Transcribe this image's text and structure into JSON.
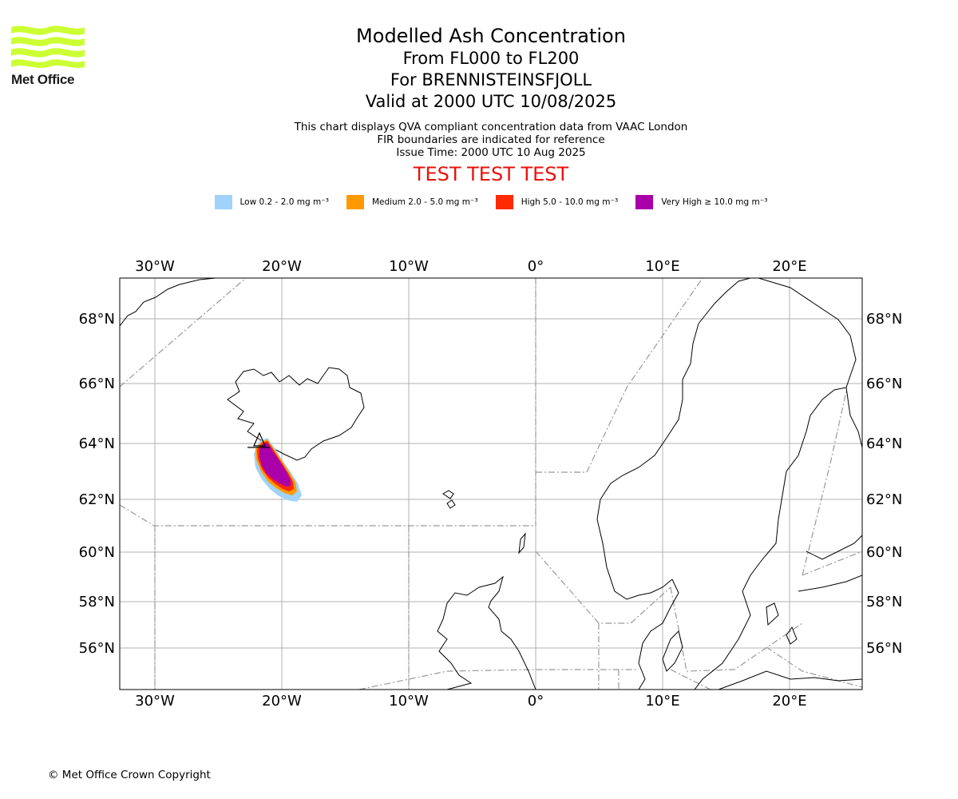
{
  "logo": {
    "text": "Met Office",
    "color": "#ccff33"
  },
  "header": {
    "title": "Modelled Ash Concentration",
    "range": "From FL000 to FL200",
    "volcano": "For BRENNISTEINSFJOLL",
    "valid": "Valid at 2000 UTC 10/08/2025",
    "info_1": "This chart displays QVA compliant concentration data from VAAC London",
    "info_2": "FIR boundaries are indicated for reference",
    "info_3": "Issue Time: 2000 UTC 10 Aug 2025",
    "test_banner": "TEST TEST TEST"
  },
  "legend": [
    {
      "label": "Low 0.2 - 2.0 mg m⁻³",
      "color": "#a0d2fa"
    },
    {
      "label": "Medium 2.0 - 5.0 mg m⁻³",
      "color": "#ff9900"
    },
    {
      "label": "High 5.0 - 10.0 mg m⁻³",
      "color": "#ff2a00"
    },
    {
      "label": "Very High ≥ 10.0 mg m⁻³",
      "color": "#aa00aa"
    }
  ],
  "map": {
    "lon_labels": [
      "30°W",
      "20°W",
      "10°W",
      "0°",
      "10°E",
      "20°E"
    ],
    "lat_labels": [
      "68°N",
      "66°N",
      "64°N",
      "62°N",
      "60°N",
      "58°N",
      "56°N"
    ],
    "grid_color": "#b0b0b0",
    "coast_color": "#000000",
    "fir_color": "#999999"
  },
  "footer": {
    "copyright": "© Met Office Crown Copyright"
  }
}
